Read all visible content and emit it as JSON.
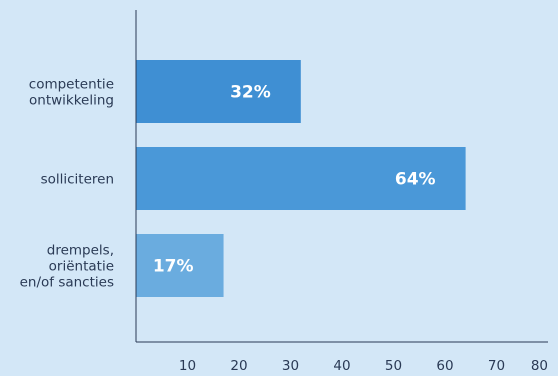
{
  "chart_data": {
    "type": "bar",
    "orientation": "horizontal",
    "title": "",
    "xlabel": "",
    "ylabel": "",
    "xlim": [
      0,
      80
    ],
    "x_ticks": [
      10,
      20,
      30,
      40,
      50,
      60,
      70,
      80
    ],
    "grid": false,
    "categories": [
      [
        "competentie",
        "ontwikkeling"
      ],
      [
        "solliciteren"
      ],
      [
        "drempels,",
        "oriëntatie",
        "en/of sancties"
      ]
    ],
    "values": [
      32,
      64,
      17
    ],
    "data_labels": [
      "32%",
      "64%",
      "17%"
    ],
    "colors": [
      "#3f8fd3",
      "#4a98d8",
      "#6aacdf"
    ]
  }
}
